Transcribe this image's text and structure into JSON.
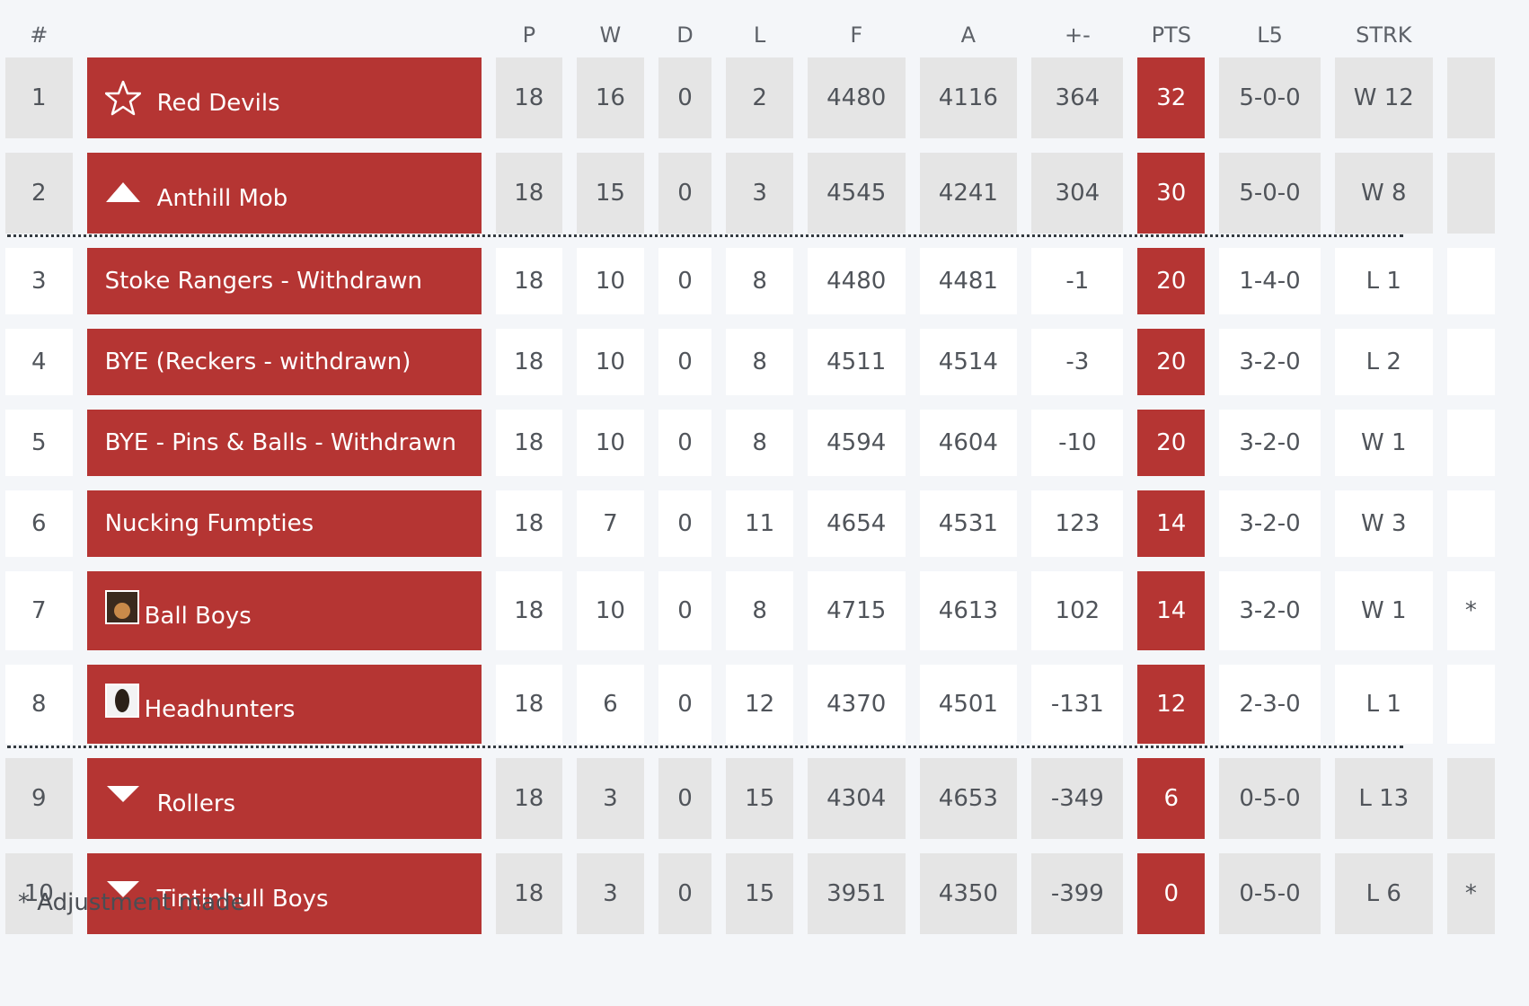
{
  "headers": {
    "rank": "#",
    "p": "P",
    "w": "W",
    "d": "D",
    "l": "L",
    "f": "F",
    "a": "A",
    "diff": "+-",
    "pts": "PTS",
    "l5": "L5",
    "strk": "STRK"
  },
  "rows": [
    {
      "rank": "1",
      "team": "Red Devils",
      "icon": "star-icon",
      "p": "18",
      "w": "16",
      "d": "0",
      "l": "2",
      "f": "4480",
      "a": "4116",
      "diff": "364",
      "pts": "32",
      "l5": "5-0-0",
      "strk": "W 12",
      "note": ""
    },
    {
      "rank": "2",
      "team": "Anthill Mob",
      "icon": "triangle-up-icon",
      "p": "18",
      "w": "15",
      "d": "0",
      "l": "3",
      "f": "4545",
      "a": "4241",
      "diff": "304",
      "pts": "30",
      "l5": "5-0-0",
      "strk": "W 8",
      "note": ""
    },
    {
      "rank": "3",
      "team": "Stoke Rangers - Withdrawn",
      "icon": "",
      "p": "18",
      "w": "10",
      "d": "0",
      "l": "8",
      "f": "4480",
      "a": "4481",
      "diff": "-1",
      "pts": "20",
      "l5": "1-4-0",
      "strk": "L 1",
      "note": ""
    },
    {
      "rank": "4",
      "team": "BYE (Reckers - withdrawn)",
      "icon": "",
      "p": "18",
      "w": "10",
      "d": "0",
      "l": "8",
      "f": "4511",
      "a": "4514",
      "diff": "-3",
      "pts": "20",
      "l5": "3-2-0",
      "strk": "L 2",
      "note": ""
    },
    {
      "rank": "5",
      "team": "BYE - Pins & Balls - Withdrawn",
      "icon": "",
      "p": "18",
      "w": "10",
      "d": "0",
      "l": "8",
      "f": "4594",
      "a": "4604",
      "diff": "-10",
      "pts": "20",
      "l5": "3-2-0",
      "strk": "W 1",
      "note": ""
    },
    {
      "rank": "6",
      "team": "Nucking Fumpties",
      "icon": "",
      "p": "18",
      "w": "7",
      "d": "0",
      "l": "11",
      "f": "4654",
      "a": "4531",
      "diff": "123",
      "pts": "14",
      "l5": "3-2-0",
      "strk": "W 3",
      "note": ""
    },
    {
      "rank": "7",
      "team": "Ball Boys",
      "icon": "ball-boys-logo",
      "p": "18",
      "w": "10",
      "d": "0",
      "l": "8",
      "f": "4715",
      "a": "4613",
      "diff": "102",
      "pts": "14",
      "l5": "3-2-0",
      "strk": "W 1",
      "note": "*"
    },
    {
      "rank": "8",
      "team": "Headhunters",
      "icon": "headhunters-logo",
      "p": "18",
      "w": "6",
      "d": "0",
      "l": "12",
      "f": "4370",
      "a": "4501",
      "diff": "-131",
      "pts": "12",
      "l5": "2-3-0",
      "strk": "L 1",
      "note": ""
    },
    {
      "rank": "9",
      "team": "Rollers",
      "icon": "triangle-down-icon",
      "p": "18",
      "w": "3",
      "d": "0",
      "l": "15",
      "f": "4304",
      "a": "4653",
      "diff": "-349",
      "pts": "6",
      "l5": "0-5-0",
      "strk": "L 13",
      "note": ""
    },
    {
      "rank": "10",
      "team": "Tintinhull Boys",
      "icon": "triangle-down-icon",
      "p": "18",
      "w": "3",
      "d": "0",
      "l": "15",
      "f": "3951",
      "a": "4350",
      "diff": "-399",
      "pts": "0",
      "l5": "0-5-0",
      "strk": "L 6",
      "note": "*"
    }
  ],
  "footnote": "* Adjustment made",
  "colors": {
    "team_bg": "#b53533",
    "highlight_row_bg": "#e5e5e5",
    "page_bg": "#f4f6f9"
  }
}
